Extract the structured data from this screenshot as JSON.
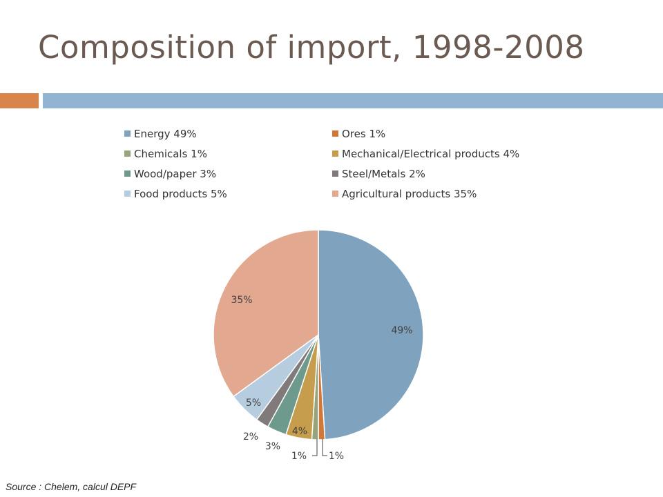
{
  "title": "Composition of import, 1998-2008",
  "source": "Source : Chelem, calcul DEPF",
  "colors": {
    "accent_bar": "#D9844A",
    "header_bar": "#93B3D2"
  },
  "chart_data": {
    "type": "pie",
    "unit": "%",
    "legend_position": "top",
    "slices": [
      {
        "legend": "Energy 49%",
        "value": 49,
        "label": "49%",
        "color": "#7FA2BE"
      },
      {
        "legend": "Ores 1%",
        "value": 1,
        "label": "1%",
        "color": "#D0773A"
      },
      {
        "legend": "Chemicals 1%",
        "value": 1,
        "label": "1%",
        "color": "#97A47B"
      },
      {
        "legend": "Mechanical/Electrical products 4%",
        "value": 4,
        "label": "4%",
        "color": "#C59D4C"
      },
      {
        "legend": "Wood/paper 3%",
        "value": 3,
        "label": "3%",
        "color": "#6E9A8E"
      },
      {
        "legend": "Steel/Metals 2%",
        "value": 2,
        "label": "2%",
        "color": "#807A7A"
      },
      {
        "legend": "Food products 5%",
        "value": 5,
        "label": "5%",
        "color": "#B6CCDF"
      },
      {
        "legend": "Agricultural products 35%",
        "value": 35,
        "label": "35%",
        "color": "#E3A990"
      }
    ]
  }
}
